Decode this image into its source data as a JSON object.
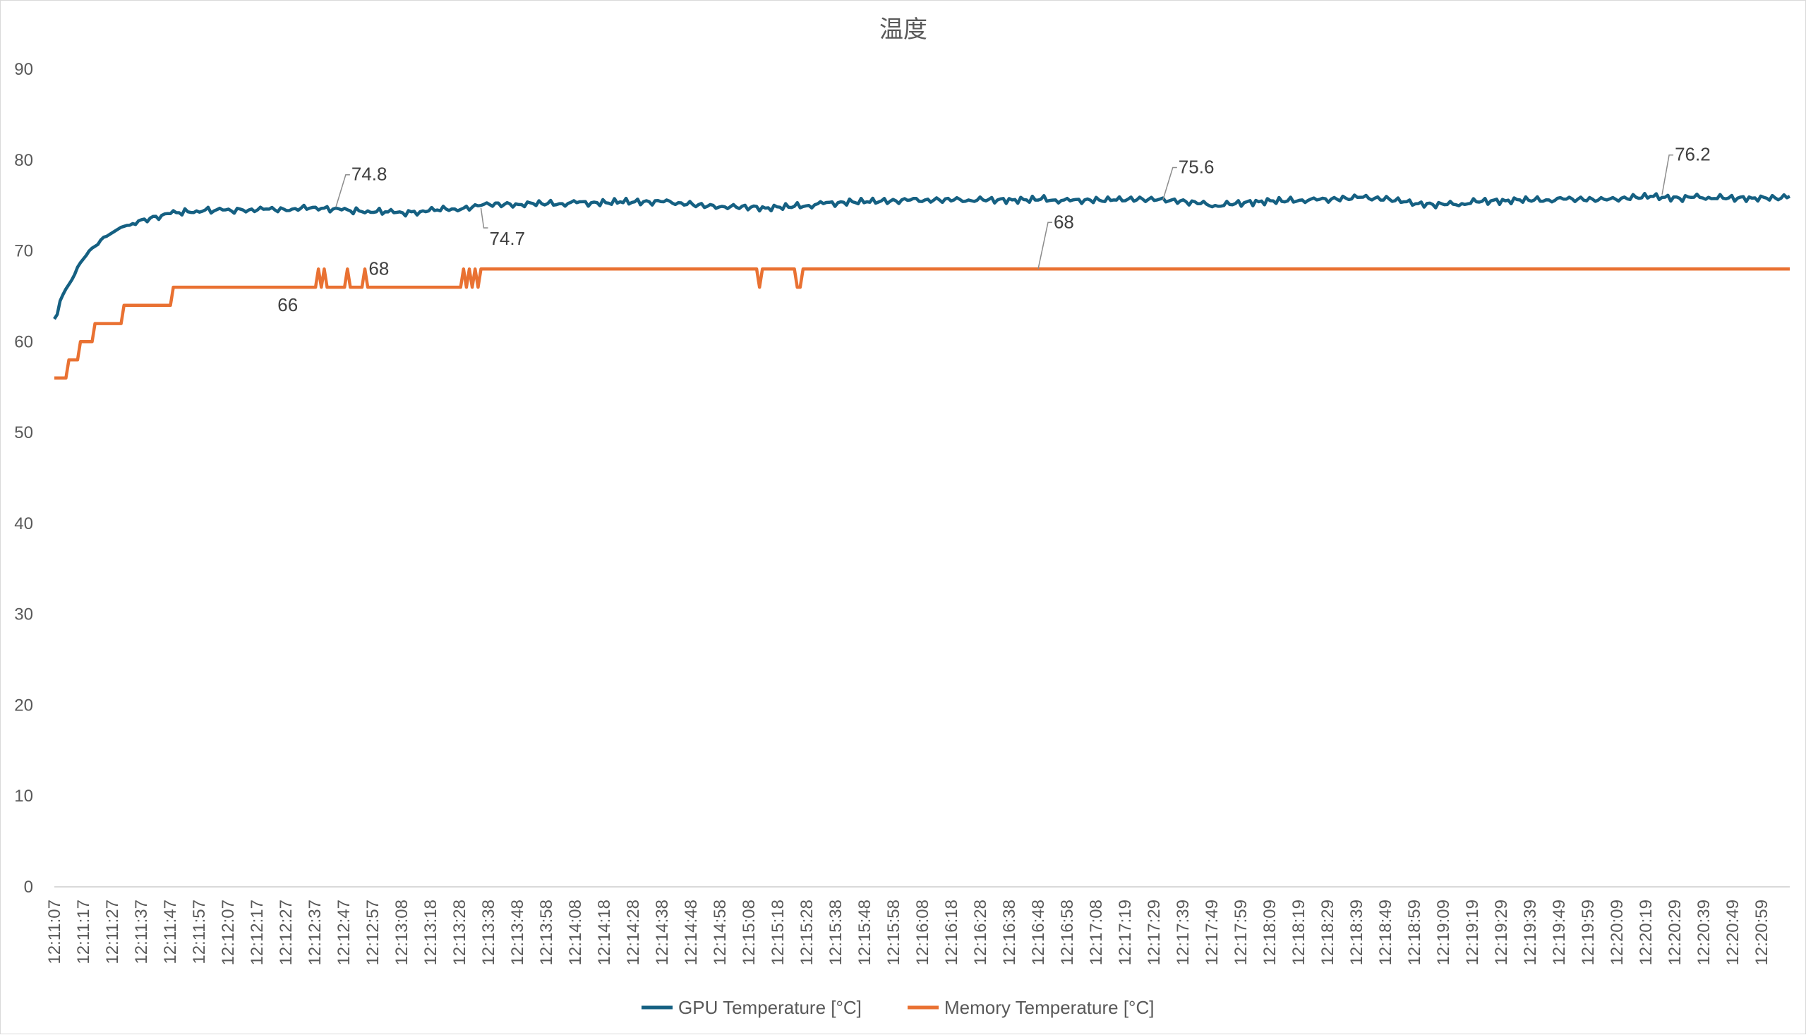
{
  "chart_data": {
    "type": "line",
    "title": "温度",
    "xlabel": "",
    "ylabel": "",
    "ylim": [
      0,
      90
    ],
    "yticks": [
      0,
      10,
      20,
      30,
      40,
      50,
      60,
      70,
      80,
      90
    ],
    "grid": false,
    "legend_position": "bottom",
    "x_tick_labels": [
      "12:11:07",
      "12:11:17",
      "12:11:27",
      "12:11:37",
      "12:11:47",
      "12:11:57",
      "12:12:07",
      "12:12:17",
      "12:12:27",
      "12:12:37",
      "12:12:47",
      "12:12:57",
      "12:13:08",
      "12:13:18",
      "12:13:28",
      "12:13:38",
      "12:13:48",
      "12:13:58",
      "12:14:08",
      "12:14:18",
      "12:14:28",
      "12:14:38",
      "12:14:48",
      "12:14:58",
      "12:15:08",
      "12:15:18",
      "12:15:28",
      "12:15:38",
      "12:15:48",
      "12:15:58",
      "12:16:08",
      "12:16:18",
      "12:16:28",
      "12:16:38",
      "12:16:48",
      "12:16:58",
      "12:17:08",
      "12:17:19",
      "12:17:29",
      "12:17:39",
      "12:17:49",
      "12:17:59",
      "12:18:09",
      "12:18:19",
      "12:18:29",
      "12:18:39",
      "12:18:49",
      "12:18:59",
      "12:19:09",
      "12:19:19",
      "12:19:29",
      "12:19:39",
      "12:19:49",
      "12:19:59",
      "12:20:09",
      "12:20:19",
      "12:20:29",
      "12:20:39",
      "12:20:49",
      "12:20:59"
    ],
    "x_range_seconds": [
      0,
      598
    ],
    "series": [
      {
        "name": "GPU Temperature [°C]",
        "color": "#156082",
        "points": [
          [
            0,
            62.5
          ],
          [
            1,
            63
          ],
          [
            2,
            64.5
          ],
          [
            3,
            65.2
          ],
          [
            4,
            65.8
          ],
          [
            5,
            66.3
          ],
          [
            6,
            66.8
          ],
          [
            7,
            67.4
          ],
          [
            8,
            68.2
          ],
          [
            9,
            68.7
          ],
          [
            10,
            69.1
          ],
          [
            11,
            69.5
          ],
          [
            12,
            70
          ],
          [
            13,
            70.3
          ],
          [
            14,
            70.5
          ],
          [
            15,
            70.7
          ],
          [
            16,
            71.2
          ],
          [
            17,
            71.5
          ],
          [
            18,
            71.6
          ],
          [
            19,
            71.8
          ],
          [
            20,
            72
          ],
          [
            21,
            72.2
          ],
          [
            22,
            72.4
          ],
          [
            23,
            72.6
          ],
          [
            24,
            72.7
          ],
          [
            25,
            72.8
          ],
          [
            27,
            73
          ],
          [
            29,
            73.3
          ],
          [
            31,
            73.5
          ],
          [
            33,
            73.6
          ],
          [
            35,
            73.8
          ],
          [
            37,
            73.9
          ],
          [
            40,
            74.1
          ],
          [
            43,
            74.2
          ],
          [
            46,
            74.3
          ],
          [
            49,
            74.4
          ],
          [
            52,
            74.5
          ],
          [
            55,
            74.4
          ],
          [
            58,
            74.5
          ],
          [
            61,
            74.4
          ],
          [
            64,
            74.6
          ],
          [
            67,
            74.5
          ],
          [
            70,
            74.5
          ],
          [
            73,
            74.6
          ],
          [
            76,
            74.5
          ],
          [
            79,
            74.6
          ],
          [
            82,
            74.6
          ],
          [
            85,
            74.7
          ],
          [
            88,
            74.7
          ],
          [
            90,
            74.8
          ],
          [
            93,
            74.7
          ],
          [
            96,
            74.6
          ],
          [
            99,
            74.5
          ],
          [
            102,
            74.4
          ],
          [
            105,
            74.4
          ],
          [
            108,
            74.4
          ],
          [
            111,
            74.3
          ],
          [
            114,
            74.3
          ],
          [
            117,
            74.2
          ],
          [
            120,
            74.2
          ],
          [
            123,
            74.3
          ],
          [
            126,
            74.3
          ],
          [
            129,
            74.4
          ],
          [
            132,
            74.5
          ],
          [
            135,
            74.6
          ],
          [
            138,
            74.6
          ],
          [
            141,
            74.7
          ],
          [
            144,
            74.8
          ],
          [
            147,
            75
          ],
          [
            150,
            75.1
          ],
          [
            155,
            75.1
          ],
          [
            160,
            75.1
          ],
          [
            165,
            75.2
          ],
          [
            170,
            75.2
          ],
          [
            175,
            75.2
          ],
          [
            180,
            75.3
          ],
          [
            185,
            75.3
          ],
          [
            190,
            75.3
          ],
          [
            195,
            75.4
          ],
          [
            200,
            75.4
          ],
          [
            205,
            75.4
          ],
          [
            210,
            75.4
          ],
          [
            215,
            75.3
          ],
          [
            220,
            75.1
          ],
          [
            225,
            74.9
          ],
          [
            230,
            74.9
          ],
          [
            235,
            74.8
          ],
          [
            240,
            74.8
          ],
          [
            245,
            74.7
          ],
          [
            250,
            74.8
          ],
          [
            255,
            74.9
          ],
          [
            260,
            75
          ],
          [
            265,
            75.2
          ],
          [
            270,
            75.3
          ],
          [
            275,
            75.4
          ],
          [
            280,
            75.4
          ],
          [
            285,
            75.5
          ],
          [
            290,
            75.5
          ],
          [
            295,
            75.6
          ],
          [
            300,
            75.6
          ],
          [
            305,
            75.6
          ],
          [
            310,
            75.6
          ],
          [
            315,
            75.6
          ],
          [
            320,
            75.6
          ],
          [
            325,
            75.6
          ],
          [
            330,
            75.6
          ],
          [
            335,
            75.6
          ],
          [
            340,
            75.7
          ],
          [
            345,
            75.6
          ],
          [
            350,
            75.5
          ],
          [
            355,
            75.6
          ],
          [
            360,
            75.6
          ],
          [
            365,
            75.6
          ],
          [
            370,
            75.7
          ],
          [
            375,
            75.7
          ],
          [
            380,
            75.6
          ],
          [
            385,
            75.6
          ],
          [
            390,
            75.4
          ],
          [
            395,
            75.2
          ],
          [
            400,
            75
          ],
          [
            405,
            75.1
          ],
          [
            410,
            75.3
          ],
          [
            415,
            75.4
          ],
          [
            420,
            75.5
          ],
          [
            425,
            75.5
          ],
          [
            430,
            75.6
          ],
          [
            435,
            75.6
          ],
          [
            440,
            75.7
          ],
          [
            445,
            75.8
          ],
          [
            450,
            75.9
          ],
          [
            455,
            75.8
          ],
          [
            460,
            75.7
          ],
          [
            465,
            75.4
          ],
          [
            470,
            75.2
          ],
          [
            475,
            75.1
          ],
          [
            480,
            75.1
          ],
          [
            485,
            75.2
          ],
          [
            490,
            75.4
          ],
          [
            495,
            75.5
          ],
          [
            500,
            75.5
          ],
          [
            505,
            75.6
          ],
          [
            510,
            75.6
          ],
          [
            515,
            75.6
          ],
          [
            520,
            75.7
          ],
          [
            525,
            75.7
          ],
          [
            530,
            75.7
          ],
          [
            535,
            75.6
          ],
          [
            540,
            75.8
          ],
          [
            545,
            75.9
          ],
          [
            550,
            76
          ],
          [
            555,
            75.9
          ],
          [
            560,
            75.8
          ],
          [
            565,
            75.9
          ],
          [
            570,
            75.9
          ],
          [
            575,
            75.8
          ],
          [
            580,
            75.8
          ],
          [
            585,
            75.8
          ],
          [
            590,
            75.8
          ],
          [
            595,
            75.8
          ],
          [
            598,
            76
          ]
        ]
      },
      {
        "name": "Memory Temperature [°C]",
        "color": "#E97132",
        "points": [
          [
            0,
            56
          ],
          [
            4,
            56
          ],
          [
            5,
            58
          ],
          [
            8,
            58
          ],
          [
            9,
            60
          ],
          [
            13,
            60
          ],
          [
            14,
            62
          ],
          [
            23,
            62
          ],
          [
            24,
            64
          ],
          [
            40,
            64
          ],
          [
            41,
            66
          ],
          [
            90,
            66
          ],
          [
            91,
            68
          ],
          [
            92,
            66
          ],
          [
            93,
            68
          ],
          [
            94,
            66
          ],
          [
            100,
            66
          ],
          [
            101,
            68
          ],
          [
            102,
            66
          ],
          [
            106,
            66
          ],
          [
            107,
            68
          ],
          [
            108,
            66
          ],
          [
            140,
            66
          ],
          [
            141,
            68
          ],
          [
            142,
            66
          ],
          [
            143,
            68
          ],
          [
            144,
            66
          ],
          [
            145,
            68
          ],
          [
            146,
            66
          ],
          [
            147,
            68
          ],
          [
            242,
            68
          ],
          [
            243,
            66
          ],
          [
            244,
            68
          ],
          [
            255,
            68
          ],
          [
            256,
            66
          ],
          [
            257,
            66
          ],
          [
            258,
            68
          ],
          [
            598,
            68
          ]
        ]
      }
    ],
    "annotations": [
      {
        "series": 0,
        "x": 97,
        "y": 74.8,
        "text": "74.8"
      },
      {
        "series": 0,
        "x": 147,
        "y": 74.7,
        "text": "74.7"
      },
      {
        "series": 0,
        "x": 382,
        "y": 75.6,
        "text": "75.6"
      },
      {
        "series": 0,
        "x": 554,
        "y": 76.2,
        "text": "76.2"
      },
      {
        "series": 1,
        "x": 92,
        "y": 66,
        "text": "66"
      },
      {
        "series": 1,
        "x": 102,
        "y": 68,
        "text": "68"
      },
      {
        "series": 1,
        "x": 339,
        "y": 68,
        "text": "68"
      }
    ]
  }
}
